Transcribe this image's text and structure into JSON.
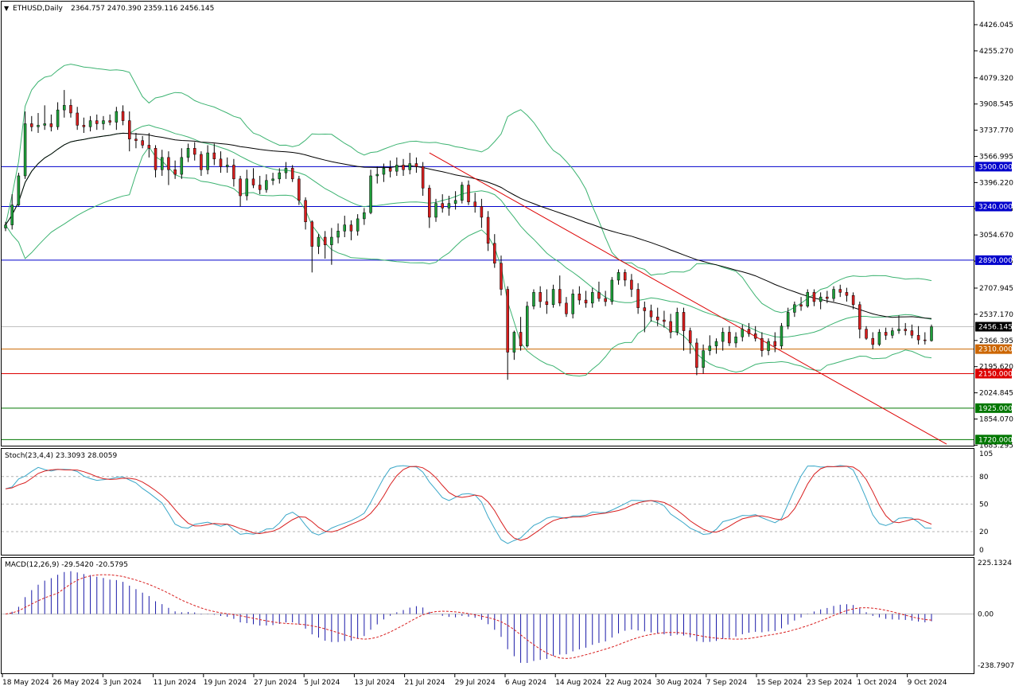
{
  "header": {
    "symbol": "ETHUSD,Daily",
    "ohlc": "2364.757 2470.390 2359.116 2456.145"
  },
  "chart_data": {
    "type": "candlestick",
    "symbol": "ETHUSD",
    "timeframe": "Daily",
    "price_axis": {
      "range": [
        1683.295,
        4596.72
      ],
      "tick_labels": [
        "4426.045",
        "4255.270",
        "4079.320",
        "3908.545",
        "3737.770",
        "3566.995",
        "3396.220",
        "3225.445",
        "3054.670",
        "2883.895",
        "2707.945",
        "2537.170",
        "2366.395",
        "2195.620",
        "2024.845",
        "1854.070",
        "1683.295"
      ]
    },
    "date_labels": [
      "18 May 2024",
      "26 May 2024",
      "3 Jun 2024",
      "11 Jun 2024",
      "19 Jun 2024",
      "27 Jun 2024",
      "5 Jul 2024",
      "13 Jul 2024",
      "21 Jul 2024",
      "29 Jul 2024",
      "6 Aug 2024",
      "14 Aug 2024",
      "22 Aug 2024",
      "30 Aug 2024",
      "7 Sep 2024",
      "15 Sep 2024",
      "23 Sep 2024",
      "1 Oct 2024",
      "9 Oct 2024"
    ],
    "horizontal_levels": [
      {
        "label": "3500.000",
        "value": 3500,
        "color": "#0000cc"
      },
      {
        "label": "3240.000",
        "value": 3240,
        "color": "#0000cc"
      },
      {
        "label": "2890.000",
        "value": 2890,
        "color": "#0000cc"
      },
      {
        "label": "2310.000",
        "value": 2310,
        "color": "#cc6600"
      },
      {
        "label": "2150.000",
        "value": 2150,
        "color": "#dd0000"
      },
      {
        "label": "1925.000",
        "value": 1925,
        "color": "#007700"
      },
      {
        "label": "1720.000",
        "value": 1720,
        "color": "#007700"
      }
    ],
    "current_price": {
      "label": "2456.145",
      "value": 2456.145
    },
    "trendline": {
      "color": "#dd0000",
      "from": {
        "date": "21 Jul 2024",
        "value": 3590
      },
      "to": {
        "date": "12 Oct 2024",
        "value": 1690
      }
    },
    "colors": {
      "bull": "#1e9e3a",
      "bear": "#d81e1e",
      "bollinger": "#3cb371",
      "ma": "#000000"
    },
    "candles": [
      [
        3100,
        3140,
        3080,
        3120
      ],
      [
        3120,
        3320,
        3090,
        3250
      ],
      [
        3250,
        3460,
        3240,
        3440
      ],
      [
        3440,
        3860,
        3420,
        3780
      ],
      [
        3780,
        3830,
        3730,
        3760
      ],
      [
        3760,
        3850,
        3720,
        3770
      ],
      [
        3770,
        3900,
        3740,
        3780
      ],
      [
        3780,
        3840,
        3730,
        3760
      ],
      [
        3760,
        3920,
        3740,
        3870
      ],
      [
        3870,
        4000,
        3820,
        3900
      ],
      [
        3900,
        3940,
        3820,
        3850
      ],
      [
        3850,
        3890,
        3740,
        3770
      ],
      [
        3770,
        3820,
        3720,
        3760
      ],
      [
        3760,
        3830,
        3730,
        3800
      ],
      [
        3800,
        3840,
        3740,
        3780
      ],
      [
        3780,
        3830,
        3740,
        3800
      ],
      [
        3800,
        3840,
        3770,
        3790
      ],
      [
        3790,
        3890,
        3740,
        3860
      ],
      [
        3860,
        3900,
        3770,
        3800
      ],
      [
        3800,
        3860,
        3600,
        3680
      ],
      [
        3680,
        3720,
        3620,
        3670
      ],
      [
        3670,
        3700,
        3620,
        3640
      ],
      [
        3640,
        3720,
        3560,
        3620
      ],
      [
        3620,
        3640,
        3430,
        3480
      ],
      [
        3480,
        3610,
        3440,
        3560
      ],
      [
        3560,
        3600,
        3380,
        3480
      ],
      [
        3480,
        3540,
        3420,
        3450
      ],
      [
        3450,
        3620,
        3420,
        3560
      ],
      [
        3560,
        3650,
        3530,
        3620
      ],
      [
        3620,
        3660,
        3540,
        3580
      ],
      [
        3580,
        3600,
        3440,
        3480
      ],
      [
        3480,
        3640,
        3450,
        3590
      ],
      [
        3590,
        3650,
        3510,
        3550
      ],
      [
        3550,
        3600,
        3460,
        3500
      ],
      [
        3500,
        3560,
        3460,
        3510
      ],
      [
        3510,
        3550,
        3370,
        3420
      ],
      [
        3420,
        3440,
        3240,
        3310
      ],
      [
        3310,
        3480,
        3280,
        3420
      ],
      [
        3420,
        3490,
        3360,
        3380
      ],
      [
        3380,
        3440,
        3320,
        3350
      ],
      [
        3350,
        3450,
        3330,
        3410
      ],
      [
        3410,
        3460,
        3380,
        3420
      ],
      [
        3420,
        3490,
        3390,
        3460
      ],
      [
        3460,
        3530,
        3420,
        3490
      ],
      [
        3490,
        3510,
        3400,
        3420
      ],
      [
        3420,
        3440,
        3250,
        3280
      ],
      [
        3280,
        3300,
        3090,
        3140
      ],
      [
        3140,
        3150,
        2810,
        2980
      ],
      [
        2980,
        3060,
        2930,
        3040
      ],
      [
        3040,
        3080,
        2900,
        2990
      ],
      [
        2990,
        3100,
        2860,
        3040
      ],
      [
        3040,
        3130,
        3000,
        3080
      ],
      [
        3080,
        3180,
        3040,
        3120
      ],
      [
        3120,
        3150,
        3020,
        3080
      ],
      [
        3080,
        3190,
        3050,
        3160
      ],
      [
        3160,
        3230,
        3120,
        3200
      ],
      [
        3200,
        3480,
        3190,
        3440
      ],
      [
        3440,
        3500,
        3390,
        3450
      ],
      [
        3450,
        3520,
        3400,
        3490
      ],
      [
        3490,
        3540,
        3430,
        3470
      ],
      [
        3470,
        3560,
        3440,
        3510
      ],
      [
        3510,
        3550,
        3440,
        3480
      ],
      [
        3480,
        3590,
        3450,
        3520
      ],
      [
        3520,
        3560,
        3460,
        3500
      ],
      [
        3500,
        3530,
        3310,
        3360
      ],
      [
        3360,
        3380,
        3100,
        3170
      ],
      [
        3170,
        3290,
        3140,
        3260
      ],
      [
        3260,
        3320,
        3200,
        3230
      ],
      [
        3230,
        3310,
        3180,
        3260
      ],
      [
        3260,
        3340,
        3220,
        3280
      ],
      [
        3280,
        3400,
        3260,
        3380
      ],
      [
        3380,
        3410,
        3250,
        3270
      ],
      [
        3270,
        3330,
        3200,
        3240
      ],
      [
        3240,
        3290,
        3100,
        3170
      ],
      [
        3170,
        3210,
        2950,
        3000
      ],
      [
        3000,
        3060,
        2840,
        2870
      ],
      [
        2870,
        2920,
        2660,
        2700
      ],
      [
        2700,
        2720,
        2110,
        2290
      ],
      [
        2290,
        2430,
        2240,
        2420
      ],
      [
        2420,
        2520,
        2300,
        2330
      ],
      [
        2330,
        2620,
        2320,
        2590
      ],
      [
        2590,
        2700,
        2570,
        2680
      ],
      [
        2680,
        2720,
        2580,
        2620
      ],
      [
        2620,
        2700,
        2540,
        2600
      ],
      [
        2600,
        2730,
        2580,
        2700
      ],
      [
        2700,
        2790,
        2590,
        2610
      ],
      [
        2610,
        2650,
        2520,
        2540
      ],
      [
        2540,
        2700,
        2510,
        2670
      ],
      [
        2670,
        2720,
        2600,
        2630
      ],
      [
        2630,
        2690,
        2580,
        2610
      ],
      [
        2610,
        2710,
        2580,
        2680
      ],
      [
        2680,
        2750,
        2620,
        2640
      ],
      [
        2640,
        2690,
        2590,
        2620
      ],
      [
        2620,
        2780,
        2600,
        2760
      ],
      [
        2760,
        2830,
        2730,
        2810
      ],
      [
        2810,
        2830,
        2720,
        2760
      ],
      [
        2760,
        2800,
        2650,
        2700
      ],
      [
        2700,
        2740,
        2540,
        2580
      ],
      [
        2580,
        2620,
        2420,
        2560
      ],
      [
        2560,
        2600,
        2490,
        2520
      ],
      [
        2520,
        2580,
        2460,
        2500
      ],
      [
        2500,
        2560,
        2450,
        2490
      ],
      [
        2490,
        2540,
        2380,
        2420
      ],
      [
        2420,
        2580,
        2400,
        2550
      ],
      [
        2550,
        2580,
        2300,
        2430
      ],
      [
        2430,
        2450,
        2280,
        2350
      ],
      [
        2350,
        2380,
        2140,
        2190
      ],
      [
        2190,
        2340,
        2150,
        2300
      ],
      [
        2300,
        2400,
        2270,
        2330
      ],
      [
        2330,
        2380,
        2280,
        2360
      ],
      [
        2360,
        2450,
        2300,
        2420
      ],
      [
        2420,
        2460,
        2330,
        2350
      ],
      [
        2350,
        2420,
        2320,
        2390
      ],
      [
        2390,
        2470,
        2360,
        2440
      ],
      [
        2440,
        2480,
        2390,
        2410
      ],
      [
        2410,
        2460,
        2360,
        2380
      ],
      [
        2380,
        2420,
        2260,
        2300
      ],
      [
        2300,
        2380,
        2270,
        2360
      ],
      [
        2360,
        2420,
        2290,
        2330
      ],
      [
        2330,
        2480,
        2310,
        2460
      ],
      [
        2460,
        2580,
        2440,
        2550
      ],
      [
        2550,
        2620,
        2520,
        2600
      ],
      [
        2600,
        2650,
        2560,
        2590
      ],
      [
        2590,
        2700,
        2580,
        2680
      ],
      [
        2680,
        2700,
        2590,
        2620
      ],
      [
        2620,
        2680,
        2570,
        2650
      ],
      [
        2650,
        2690,
        2610,
        2640
      ],
      [
        2640,
        2720,
        2620,
        2700
      ],
      [
        2700,
        2730,
        2650,
        2680
      ],
      [
        2680,
        2710,
        2620,
        2660
      ],
      [
        2660,
        2680,
        2570,
        2600
      ],
      [
        2600,
        2620,
        2380,
        2440
      ],
      [
        2440,
        2460,
        2370,
        2380
      ],
      [
        2380,
        2420,
        2310,
        2340
      ],
      [
        2340,
        2440,
        2330,
        2420
      ],
      [
        2420,
        2450,
        2370,
        2400
      ],
      [
        2400,
        2450,
        2380,
        2430
      ],
      [
        2430,
        2530,
        2410,
        2440
      ],
      [
        2440,
        2480,
        2400,
        2430
      ],
      [
        2430,
        2470,
        2380,
        2400
      ],
      [
        2400,
        2460,
        2340,
        2370
      ],
      [
        2370,
        2420,
        2340,
        2365
      ],
      [
        2365,
        2470,
        2359,
        2456
      ]
    ],
    "stochastic": {
      "label": "Stoch(23,4,4) 23.3093 28.0059",
      "range": [
        0,
        105
      ],
      "tick_labels": [
        "105",
        "80",
        "50",
        "20",
        "0"
      ],
      "levels": [
        80,
        50,
        20
      ]
    },
    "macd": {
      "label": "MACD(12,26,9) -29.5420 -20.5795",
      "range": [
        -238.7907,
        225.1324
      ],
      "tick_labels": [
        "225.1324",
        "0.00",
        "-238.7907"
      ]
    }
  }
}
